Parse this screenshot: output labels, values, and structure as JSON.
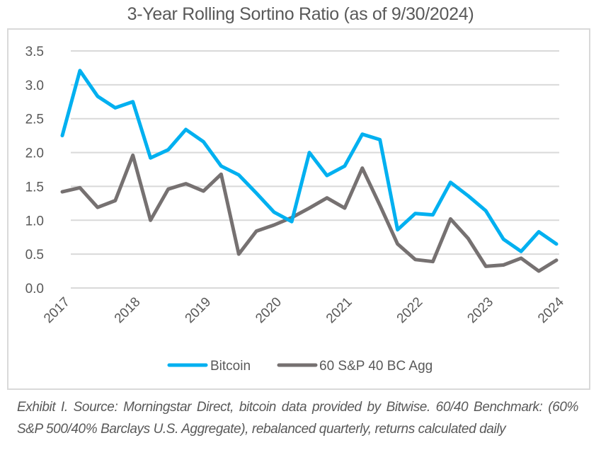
{
  "chart_data": {
    "type": "line",
    "title": "3-Year Rolling Sortino Ratio (as of 9/30/2024)",
    "xlabel": "",
    "ylabel": "",
    "ylim": [
      0,
      3.5
    ],
    "yticks": [
      "0.0",
      "0.5",
      "1.0",
      "1.5",
      "2.0",
      "2.5",
      "3.0",
      "3.5"
    ],
    "ytick_values": [
      0,
      0.5,
      1.0,
      1.5,
      2.0,
      2.5,
      3.0,
      3.5
    ],
    "xtick_labels": [
      "2017",
      "2018",
      "2019",
      "2020",
      "2021",
      "2022",
      "2023",
      "2024"
    ],
    "x_points_per_year": 4,
    "grid": "horizontal",
    "legend_position": "bottom",
    "series": [
      {
        "name": "Bitcoin",
        "color": "#00b0f0",
        "values": [
          2.25,
          3.21,
          2.83,
          2.66,
          2.75,
          1.92,
          2.04,
          2.34,
          2.16,
          1.8,
          1.67,
          1.4,
          1.12,
          0.98,
          2.0,
          1.66,
          1.8,
          2.27,
          2.19,
          0.86,
          1.1,
          1.08,
          1.56,
          1.36,
          1.14,
          0.72,
          0.54,
          0.83,
          0.65
        ]
      },
      {
        "name": "60 S&P 40 BC Agg",
        "color": "#767171",
        "values": [
          1.42,
          1.48,
          1.19,
          1.29,
          1.96,
          1.0,
          1.46,
          1.54,
          1.43,
          1.68,
          0.5,
          0.84,
          0.93,
          1.04,
          1.18,
          1.33,
          1.18,
          1.77,
          1.22,
          0.65,
          0.42,
          0.39,
          1.02,
          0.73,
          0.32,
          0.34,
          0.44,
          0.25,
          0.41
        ]
      }
    ]
  },
  "caption": "Exhibit I. Source: Morningstar Direct, bitcoin data provided by Bitwise. 60/40 Benchmark: (60% S&P 500/40% Barclays U.S. Aggregate), rebalanced quarterly, returns calculated daily"
}
